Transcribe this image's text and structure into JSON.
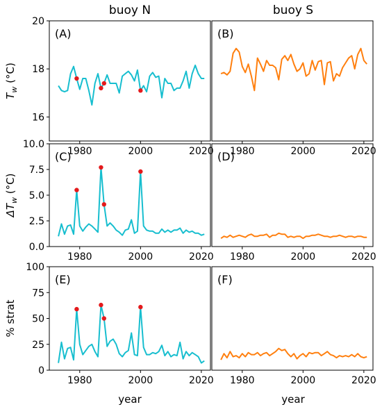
{
  "columns": [
    "buoy N",
    "buoy S"
  ],
  "xlabel": "year",
  "colors": {
    "buoyN": "#17becf",
    "buoyS": "#ff7f0e",
    "marker": "#e41a1c"
  },
  "chart_data": [
    {
      "type": "line",
      "label": "(A)",
      "column": "buoy N",
      "ylabel": "T_w (°C)",
      "ylabel_main": "T",
      "ylabel_sub": "w",
      "ylabel_units": " (°C)",
      "xlim": [
        1970,
        2023
      ],
      "ylim": [
        15,
        20
      ],
      "xticks": [
        1980,
        2000,
        2020
      ],
      "yticks": [
        16,
        18,
        20
      ],
      "show_xtick_labels": true,
      "series": [
        {
          "color": "#17becf",
          "x": [
            1973,
            1974,
            1975,
            1976,
            1977,
            1978,
            1979,
            1980,
            1981,
            1982,
            1983,
            1984,
            1985,
            1986,
            1987,
            1988,
            1989,
            1990,
            1991,
            1992,
            1993,
            1994,
            1995,
            1996,
            1997,
            1998,
            1999,
            2000,
            2001,
            2002,
            2003,
            2004,
            2005,
            2006,
            2007,
            2008,
            2009,
            2010,
            2011,
            2012,
            2013,
            2014,
            2015,
            2016,
            2017,
            2018,
            2019,
            2020,
            2021
          ],
          "y": [
            17.3,
            17.1,
            17.05,
            17.1,
            17.8,
            18.1,
            17.6,
            17.15,
            17.6,
            17.6,
            17.1,
            16.5,
            17.4,
            17.8,
            17.2,
            17.4,
            17.75,
            17.4,
            17.4,
            17.4,
            17.0,
            17.7,
            17.8,
            17.9,
            17.75,
            17.5,
            17.95,
            17.1,
            17.3,
            17.05,
            17.7,
            17.85,
            17.65,
            17.7,
            16.8,
            17.6,
            17.4,
            17.4,
            17.1,
            17.2,
            17.2,
            17.5,
            17.9,
            17.2,
            17.8,
            18.15,
            17.8,
            17.6,
            17.6
          ]
        }
      ],
      "markers": [
        {
          "x": 1979,
          "y": 17.6
        },
        {
          "x": 1987,
          "y": 17.2
        },
        {
          "x": 1988,
          "y": 17.4
        },
        {
          "x": 2000,
          "y": 17.1
        }
      ]
    },
    {
      "type": "line",
      "label": "(B)",
      "column": "buoy S",
      "xlim": [
        1970,
        2023
      ],
      "ylim": [
        15,
        20
      ],
      "xticks": [
        1980,
        2000,
        2020
      ],
      "yticks": [],
      "show_xtick_labels": true,
      "series": [
        {
          "color": "#ff7f0e",
          "x": [
            1973,
            1974,
            1975,
            1976,
            1977,
            1978,
            1979,
            1980,
            1981,
            1982,
            1983,
            1984,
            1985,
            1986,
            1987,
            1988,
            1989,
            1990,
            1991,
            1992,
            1993,
            1994,
            1995,
            1996,
            1997,
            1998,
            1999,
            2000,
            2001,
            2002,
            2003,
            2004,
            2005,
            2006,
            2007,
            2008,
            2009,
            2010,
            2011,
            2012,
            2013,
            2014,
            2015,
            2016,
            2017,
            2018,
            2019,
            2020,
            2021
          ],
          "y": [
            17.8,
            17.85,
            17.75,
            17.9,
            18.65,
            18.85,
            18.7,
            18.1,
            17.85,
            18.2,
            17.7,
            17.1,
            18.45,
            18.2,
            17.9,
            18.35,
            18.15,
            18.15,
            18.05,
            17.55,
            18.4,
            18.55,
            18.35,
            18.6,
            18.2,
            17.9,
            18.0,
            18.25,
            17.7,
            17.8,
            18.35,
            17.95,
            18.3,
            18.35,
            17.35,
            18.25,
            18.3,
            17.5,
            17.8,
            17.7,
            18.05,
            18.25,
            18.45,
            18.55,
            18.0,
            18.6,
            18.85,
            18.35,
            18.2
          ]
        }
      ],
      "markers": []
    },
    {
      "type": "line",
      "label": "(C)",
      "column": "buoy N",
      "ylabel": "ΔT_w (°C)",
      "ylabel_main": "ΔT",
      "ylabel_sub": "w",
      "ylabel_units": " (°C)",
      "xlim": [
        1970,
        2023
      ],
      "ylim": [
        0,
        10
      ],
      "xticks": [
        1980,
        2000,
        2020
      ],
      "yticks": [
        0.0,
        2.5,
        5.0,
        7.5,
        10.0
      ],
      "ytick_labels": [
        "0.0",
        "2.5",
        "5.0",
        "7.5",
        "10.0"
      ],
      "show_xtick_labels": true,
      "series": [
        {
          "color": "#17becf",
          "x": [
            1973,
            1974,
            1975,
            1976,
            1977,
            1978,
            1979,
            1980,
            1981,
            1982,
            1983,
            1984,
            1985,
            1986,
            1987,
            1988,
            1989,
            1990,
            1991,
            1992,
            1993,
            1994,
            1995,
            1996,
            1997,
            1998,
            1999,
            2000,
            2001,
            2002,
            2003,
            2004,
            2005,
            2006,
            2007,
            2008,
            2009,
            2010,
            2011,
            2012,
            2013,
            2014,
            2015,
            2016,
            2017,
            2018,
            2019,
            2020,
            2021
          ],
          "y": [
            1.0,
            2.2,
            1.2,
            2.0,
            2.1,
            1.2,
            5.5,
            2.0,
            1.5,
            1.9,
            2.2,
            2.0,
            1.7,
            1.4,
            7.7,
            4.1,
            2.0,
            2.3,
            2.0,
            1.6,
            1.4,
            1.1,
            1.6,
            1.7,
            2.6,
            1.3,
            1.5,
            7.3,
            2.0,
            1.6,
            1.5,
            1.5,
            1.3,
            1.3,
            1.7,
            1.4,
            1.6,
            1.4,
            1.6,
            1.6,
            1.8,
            1.3,
            1.6,
            1.4,
            1.5,
            1.3,
            1.3,
            1.1,
            1.2
          ]
        }
      ],
      "markers": [
        {
          "x": 1979,
          "y": 5.5
        },
        {
          "x": 1987,
          "y": 7.7
        },
        {
          "x": 1988,
          "y": 4.1
        },
        {
          "x": 2000,
          "y": 7.3
        }
      ]
    },
    {
      "type": "line",
      "label": "(D)",
      "column": "buoy S",
      "xlim": [
        1970,
        2023
      ],
      "ylim": [
        0,
        10
      ],
      "xticks": [
        1980,
        2000,
        2020
      ],
      "yticks": [],
      "show_xtick_labels": true,
      "series": [
        {
          "color": "#ff7f0e",
          "x": [
            1973,
            1974,
            1975,
            1976,
            1977,
            1978,
            1979,
            1980,
            1981,
            1982,
            1983,
            1984,
            1985,
            1986,
            1987,
            1988,
            1989,
            1990,
            1991,
            1992,
            1993,
            1994,
            1995,
            1996,
            1997,
            1998,
            1999,
            2000,
            2001,
            2002,
            2003,
            2004,
            2005,
            2006,
            2007,
            2008,
            2009,
            2010,
            2011,
            2012,
            2013,
            2014,
            2015,
            2016,
            2017,
            2018,
            2019,
            2020,
            2021
          ],
          "y": [
            0.8,
            1.0,
            0.9,
            1.1,
            0.9,
            1.0,
            1.1,
            1.0,
            0.9,
            1.1,
            1.2,
            1.0,
            1.0,
            1.1,
            1.1,
            1.2,
            0.9,
            1.1,
            1.1,
            1.3,
            1.2,
            1.2,
            0.9,
            1.0,
            0.9,
            1.0,
            1.0,
            0.8,
            1.0,
            1.0,
            1.1,
            1.1,
            1.2,
            1.1,
            1.0,
            1.0,
            0.9,
            1.0,
            1.0,
            1.1,
            1.0,
            0.9,
            1.0,
            1.0,
            0.9,
            1.0,
            1.0,
            0.9,
            0.9
          ]
        }
      ],
      "markers": []
    },
    {
      "type": "line",
      "label": "(E)",
      "column": "buoy N",
      "ylabel": "% strat",
      "xlim": [
        1970,
        2023
      ],
      "ylim": [
        0,
        100
      ],
      "xticks": [
        1980,
        2000,
        2020
      ],
      "yticks": [
        0,
        25,
        50,
        75,
        100
      ],
      "show_xtick_labels": true,
      "series": [
        {
          "color": "#17becf",
          "x": [
            1973,
            1974,
            1975,
            1976,
            1977,
            1978,
            1979,
            1980,
            1981,
            1982,
            1983,
            1984,
            1985,
            1986,
            1987,
            1988,
            1989,
            1990,
            1991,
            1992,
            1993,
            1994,
            1995,
            1996,
            1997,
            1998,
            1999,
            2000,
            2001,
            2002,
            2003,
            2004,
            2005,
            2006,
            2007,
            2008,
            2009,
            2010,
            2011,
            2012,
            2013,
            2014,
            2015,
            2016,
            2017,
            2018,
            2019,
            2020,
            2021
          ],
          "y": [
            7,
            27,
            11,
            21,
            22,
            10,
            59,
            25,
            15,
            19,
            23,
            25,
            18,
            13,
            63,
            50,
            23,
            28,
            30,
            25,
            16,
            13,
            17,
            19,
            36,
            15,
            14,
            61,
            22,
            15,
            15,
            17,
            16,
            18,
            24,
            14,
            18,
            13,
            15,
            14,
            27,
            11,
            18,
            14,
            17,
            15,
            13,
            7,
            9
          ]
        }
      ],
      "markers": [
        {
          "x": 1979,
          "y": 59
        },
        {
          "x": 1987,
          "y": 63
        },
        {
          "x": 1988,
          "y": 50
        },
        {
          "x": 2000,
          "y": 61
        }
      ]
    },
    {
      "type": "line",
      "label": "(F)",
      "column": "buoy S",
      "xlim": [
        1970,
        2023
      ],
      "ylim": [
        0,
        100
      ],
      "xticks": [
        1980,
        2000,
        2020
      ],
      "yticks": [],
      "show_xtick_labels": true,
      "series": [
        {
          "color": "#ff7f0e",
          "x": [
            1973,
            1974,
            1975,
            1976,
            1977,
            1978,
            1979,
            1980,
            1981,
            1982,
            1983,
            1984,
            1985,
            1986,
            1987,
            1988,
            1989,
            1990,
            1991,
            1992,
            1993,
            1994,
            1995,
            1996,
            1997,
            1998,
            1999,
            2000,
            2001,
            2002,
            2003,
            2004,
            2005,
            2006,
            2007,
            2008,
            2009,
            2010,
            2011,
            2012,
            2013,
            2014,
            2015,
            2016,
            2017,
            2018,
            2019,
            2020,
            2021
          ],
          "y": [
            10,
            16,
            12,
            18,
            13,
            14,
            12,
            16,
            13,
            17,
            15,
            15,
            17,
            14,
            16,
            17,
            14,
            16,
            18,
            21,
            19,
            20,
            16,
            13,
            16,
            11,
            14,
            16,
            13,
            17,
            16,
            17,
            17,
            14,
            16,
            18,
            15,
            14,
            12,
            14,
            13,
            14,
            13,
            15,
            13,
            16,
            13,
            12,
            13
          ]
        }
      ],
      "markers": []
    }
  ]
}
